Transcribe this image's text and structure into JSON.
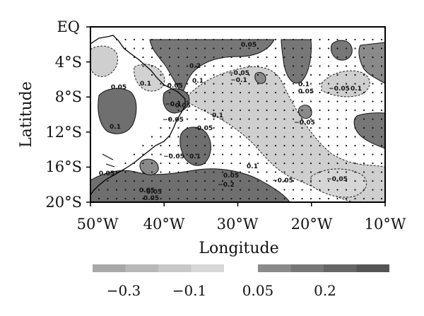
{
  "figure": {
    "x_axis_title": "Longitude",
    "y_axis_title": "Latitude",
    "x_tick_labels": [
      "50°W",
      "40°W",
      "30°W",
      "20°W",
      "10°W"
    ],
    "y_tick_labels": [
      "EQ",
      "4°S",
      "8°S",
      "12°S",
      "16°S",
      "20°S"
    ]
  },
  "map": {
    "lon_range": [
      -50,
      -10
    ],
    "lat_range": [
      -20,
      0
    ],
    "contour_labels": [
      "0.05",
      "0.2",
      "0.1",
      "-0.05",
      "-0.1",
      "0.1",
      "0.05",
      "0.05",
      "0.1",
      "-0.05",
      "0.05",
      "0.1",
      "-0.05",
      "-0.1",
      "-0.05",
      "0.05",
      "0.1",
      "-0.05",
      "0.05",
      "0.1",
      "-0.2",
      "0.05",
      "-0.05",
      "-0.05",
      "0.05",
      "0.1",
      "0.05",
      "-0.05",
      "0.1",
      "-0.05"
    ]
  },
  "colorbar": {
    "tick_labels": [
      "-0.3",
      "-0.1",
      "0.05",
      "0.2"
    ],
    "negative_colors": [
      "#a8a8a8",
      "#b8b8b8",
      "#c8c8c8",
      "#d8d8d8"
    ],
    "positive_colors": [
      "#8a8a8a",
      "#777777",
      "#666666",
      "#555555"
    ]
  }
}
